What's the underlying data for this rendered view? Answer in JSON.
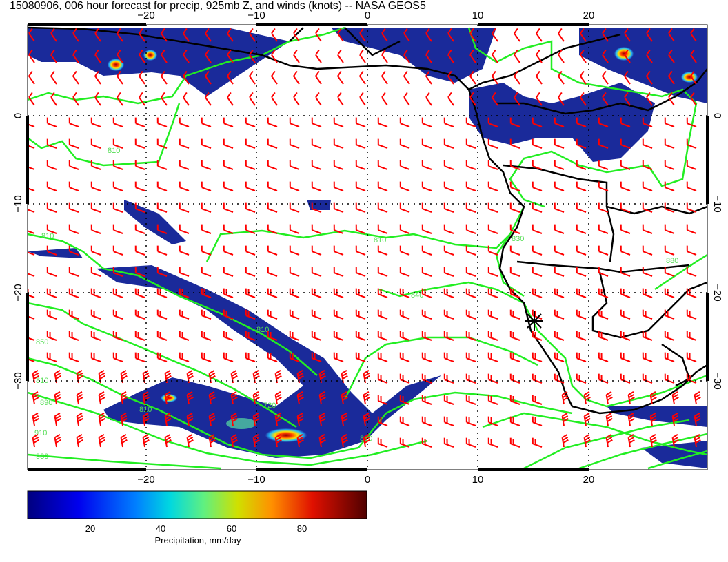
{
  "title": "15080906, 006 hour forecast for precip, 925mb Z, and winds (knots) -- NASA GEOS5",
  "map": {
    "lon_range": [
      -31,
      31
    ],
    "lat_range": [
      9,
      -40
    ],
    "lon_ticks": [
      -20,
      -10,
      0,
      10,
      20
    ],
    "lat_ticks": [
      0,
      -10,
      -20,
      -30
    ],
    "lon_tick_labels": [
      "−20",
      "−10",
      "0",
      "10",
      "20"
    ],
    "lat_tick_labels": [
      "0",
      "−10",
      "−20",
      "−30"
    ],
    "grid": true,
    "precip_color": "#1a2a9a",
    "contour_color": "#22ee22",
    "coastline_color": "#000000",
    "wind_barb_color": "#ff0000",
    "marker": "star-cross-icon",
    "contour_labels": [
      "810",
      "810",
      "840",
      "810",
      "850",
      "810",
      "890",
      "810",
      "910",
      "930",
      "810",
      "720",
      "810",
      "830",
      "880"
    ]
  },
  "colorbar": {
    "ticks": [
      "20",
      "40",
      "60",
      "80"
    ],
    "label": "Precipitation, mm/day",
    "colors": [
      "#00007f",
      "#0000ff",
      "#00bfff",
      "#00ffbf",
      "#7fff00",
      "#ffbf00",
      "#ff4000",
      "#bf0000",
      "#5a0000"
    ]
  }
}
